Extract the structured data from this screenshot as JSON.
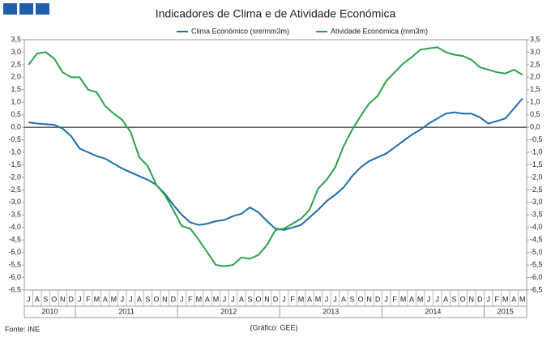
{
  "chart_data": {
    "type": "line",
    "title": "Indicadores de Clima e de Atividade Económica",
    "categories": [
      "J",
      "A",
      "S",
      "O",
      "N",
      "D",
      "J",
      "F",
      "M",
      "A",
      "M",
      "J",
      "J",
      "A",
      "S",
      "O",
      "N",
      "D",
      "J",
      "F",
      "M",
      "A",
      "M",
      "J",
      "J",
      "A",
      "S",
      "O",
      "N",
      "D",
      "J",
      "F",
      "M",
      "A",
      "M",
      "J",
      "J",
      "A",
      "S",
      "O",
      "N",
      "D",
      "J",
      "F",
      "M",
      "A",
      "M",
      "J",
      "J",
      "A",
      "S",
      "O",
      "N",
      "D",
      "J",
      "F",
      "M",
      "A",
      "M"
    ],
    "years": [
      "2010",
      "2011",
      "2012",
      "2013",
      "2014",
      "2015"
    ],
    "series": [
      {
        "name": "Clima Económico (sre/mm3m)",
        "color": "#1f6fa8",
        "values": [
          0.2,
          0.15,
          0.12,
          0.1,
          -0.05,
          -0.35,
          -0.85,
          -1.0,
          -1.15,
          -1.25,
          -1.45,
          -1.65,
          -1.8,
          -1.95,
          -2.1,
          -2.3,
          -2.65,
          -3.1,
          -3.5,
          -3.8,
          -3.9,
          -3.85,
          -3.75,
          -3.7,
          -3.55,
          -3.45,
          -3.2,
          -3.4,
          -3.75,
          -4.05,
          -4.1,
          -4.0,
          -3.9,
          -3.6,
          -3.3,
          -2.95,
          -2.7,
          -2.4,
          -1.95,
          -1.6,
          -1.35,
          -1.2,
          -1.05,
          -0.8,
          -0.55,
          -0.3,
          -0.1,
          0.15,
          0.35,
          0.55,
          0.6,
          0.55,
          0.55,
          0.4,
          0.15,
          0.25,
          0.35,
          0.75,
          1.15
        ]
      },
      {
        "name": "Atividade Económica (mm3m)",
        "color": "#2ca24a",
        "axis": "y2",
        "values": [
          2.5,
          2.95,
          3.0,
          2.75,
          2.2,
          2.0,
          2.0,
          1.5,
          1.4,
          0.85,
          0.55,
          0.3,
          -0.2,
          -1.2,
          -1.55,
          -2.3,
          -2.7,
          -3.3,
          -3.95,
          -4.05,
          -4.5,
          -5.0,
          -5.5,
          -5.55,
          -5.5,
          -5.2,
          -5.25,
          -5.1,
          -4.7,
          -4.1,
          -4.05,
          -3.85,
          -3.65,
          -3.3,
          -2.45,
          -2.1,
          -1.6,
          -0.75,
          -0.1,
          0.45,
          0.95,
          1.25,
          1.85,
          2.2,
          2.55,
          2.8,
          3.1,
          3.15,
          3.2,
          3.0,
          2.9,
          2.85,
          2.7,
          2.4,
          2.3,
          2.2,
          2.15,
          2.3,
          2.1
        ]
      }
    ],
    "ylim": [
      -6.5,
      3.5
    ],
    "yticks": [
      {
        "value": 3.5,
        "label": "3,5"
      },
      {
        "value": 3,
        "label": "3,0"
      },
      {
        "value": 2.5,
        "label": "2,5"
      },
      {
        "value": 2,
        "label": "2,0"
      },
      {
        "value": 1.5,
        "label": "1,5"
      },
      {
        "value": 1,
        "label": "1,0"
      },
      {
        "value": 0.5,
        "label": "0,5"
      },
      {
        "value": 0,
        "label": "0,0"
      },
      {
        "value": -0.5,
        "label": "-0,5"
      },
      {
        "value": -1,
        "label": "-1,0"
      },
      {
        "value": -1.5,
        "label": "-1,5"
      },
      {
        "value": -2,
        "label": "-2,0"
      },
      {
        "value": -2.5,
        "label": "-2,5"
      },
      {
        "value": -3,
        "label": "-3,0"
      },
      {
        "value": -3.5,
        "label": "-3,5"
      },
      {
        "value": -4,
        "label": "-4,0"
      },
      {
        "value": -4.5,
        "label": "-4,5"
      },
      {
        "value": -5,
        "label": "-5,0"
      },
      {
        "value": -5.5,
        "label": "-5,5"
      },
      {
        "value": -6,
        "label": "-6,0"
      },
      {
        "value": -6.5,
        "label": "-6,5"
      }
    ],
    "y2lim": [
      -6.5,
      3.5
    ],
    "y2ticks": [
      {
        "value": 3.5,
        "label": "3,5"
      },
      {
        "value": 3,
        "label": "3,0"
      },
      {
        "value": 2.5,
        "label": "2,5"
      },
      {
        "value": 2,
        "label": "2,0"
      },
      {
        "value": 1.5,
        "label": "1,5"
      },
      {
        "value": 1,
        "label": "1,0"
      },
      {
        "value": 0.5,
        "label": "0,5"
      },
      {
        "value": 0,
        "label": "0,0"
      },
      {
        "value": -0.5,
        "label": "-0,5"
      },
      {
        "value": -1,
        "label": "-1,0"
      },
      {
        "value": -1.5,
        "label": "-1,5"
      },
      {
        "value": -2,
        "label": "-2,0"
      },
      {
        "value": -2.5,
        "label": "-2,5"
      },
      {
        "value": -3,
        "label": "-3,0"
      },
      {
        "value": -3.5,
        "label": "-3,5"
      },
      {
        "value": -4,
        "label": "-4,0"
      },
      {
        "value": -4.5,
        "label": "-4,5"
      },
      {
        "value": -5,
        "label": "-5,0"
      },
      {
        "value": -5.5,
        "label": "-5,5"
      },
      {
        "value": -6,
        "label": "-6,0"
      },
      {
        "value": -6.5,
        "label": "-6,5"
      }
    ],
    "source": "Fonte: INE",
    "credit": "(Gráfico: GEE)"
  }
}
